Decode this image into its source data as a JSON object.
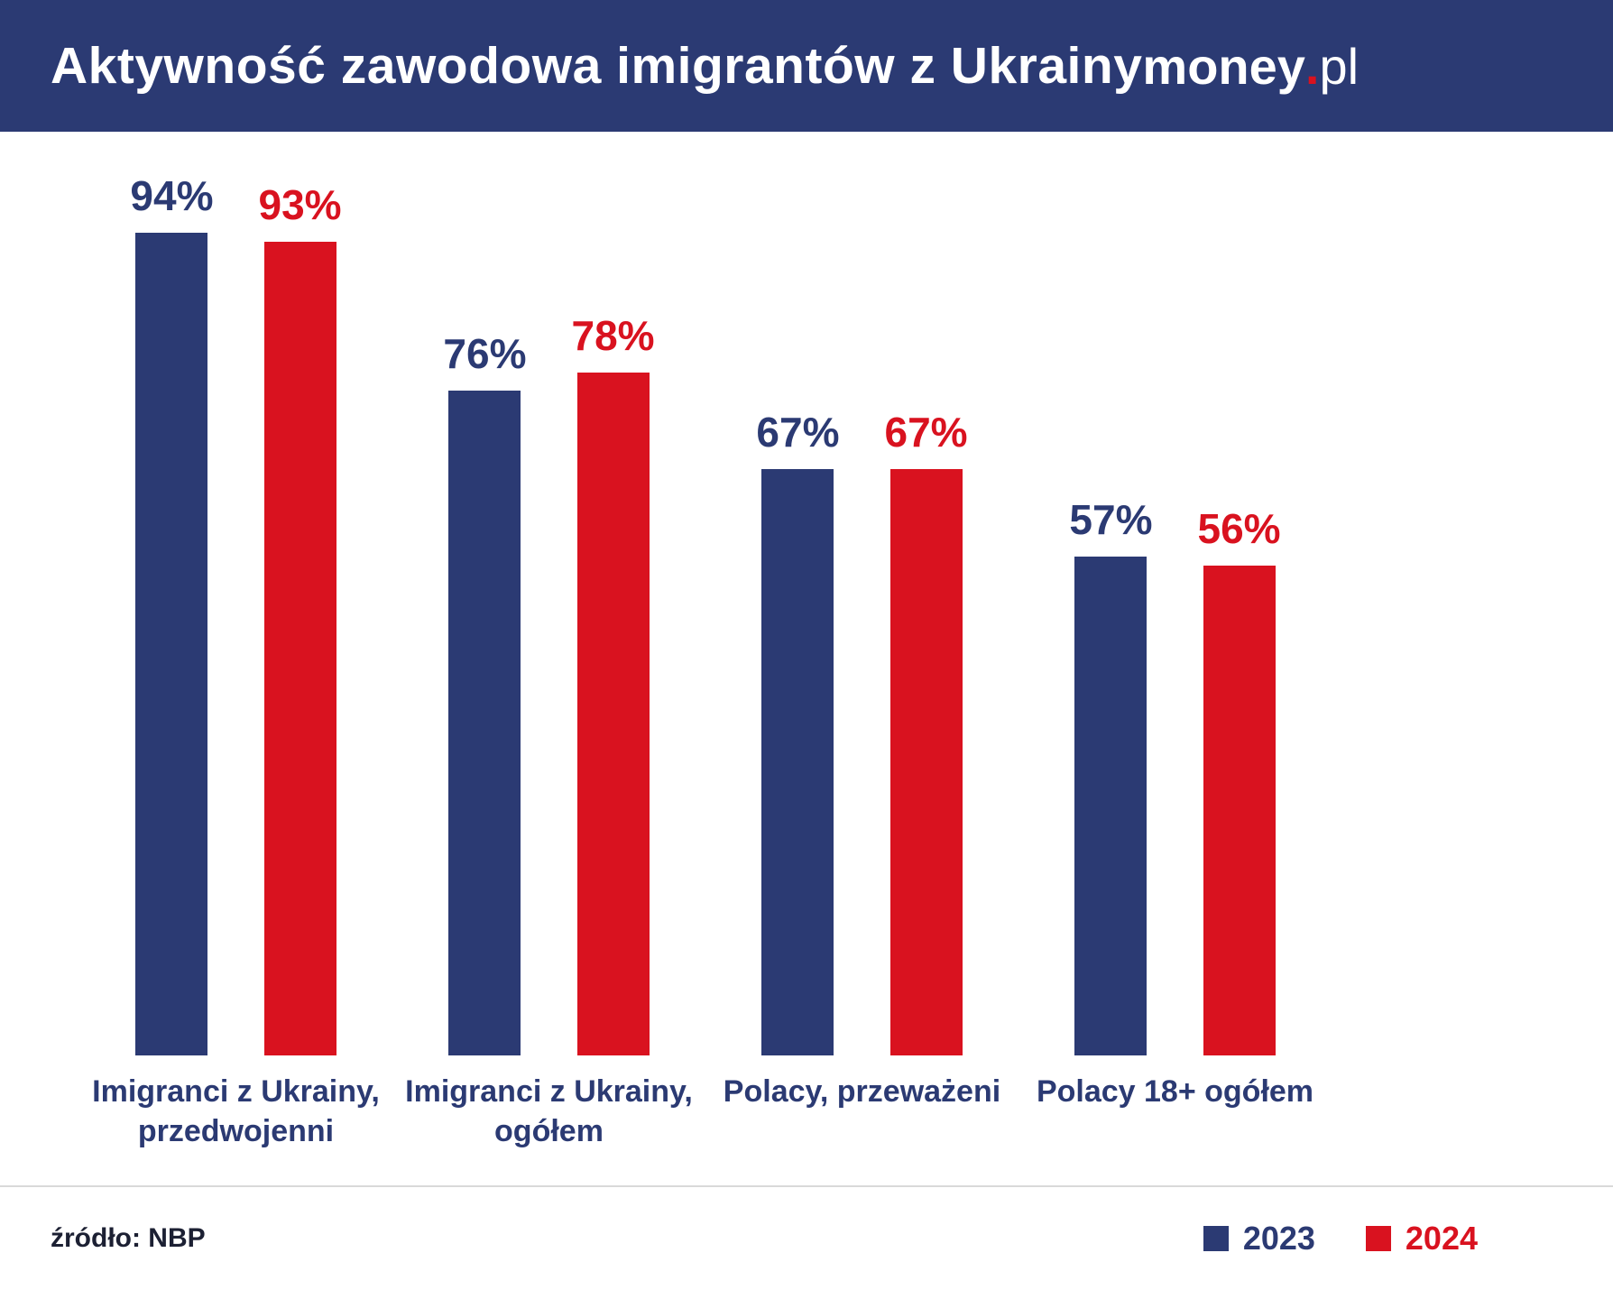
{
  "colors": {
    "navy": "#2b3a73",
    "red": "#d9121f",
    "divider": "#d9d9d9",
    "header_bg": "#2b3a73",
    "title_text": "#ffffff"
  },
  "header": {
    "title": "Aktywność zawodowa imigrantów z Ukrainy",
    "logo": {
      "money": "money",
      "dot": ".",
      "pl": "pl"
    }
  },
  "chart_data": {
    "type": "bar",
    "title": "Aktywność zawodowa imigrantów z Ukrainy",
    "unit": "%",
    "ylim": [
      0,
      100
    ],
    "grid": false,
    "legend_position": "bottom-right",
    "categories": [
      "Imigranci z Ukrainy, przedwojenni",
      "Imigranci z Ukrainy, ogółem",
      "Polacy, przeważeni",
      "Polacy 18+ ogółem"
    ],
    "category_lines": [
      [
        "Imigranci z Ukrainy,",
        "przedwojenni"
      ],
      [
        "Imigranci z Ukrainy,",
        "ogółem"
      ],
      [
        "Polacy, przeważeni"
      ],
      [
        "Polacy 18+ ogółem"
      ]
    ],
    "series": [
      {
        "name": "2023",
        "color": "#2b3a73",
        "values": [
          94,
          76,
          67,
          57
        ]
      },
      {
        "name": "2024",
        "color": "#d9121f",
        "values": [
          93,
          78,
          67,
          56
        ]
      }
    ],
    "value_labels": [
      [
        "94%",
        "93%"
      ],
      [
        "76%",
        "78%"
      ],
      [
        "67%",
        "67%"
      ],
      [
        "57%",
        "56%"
      ]
    ]
  },
  "footer": {
    "source": "źródło: NBP"
  }
}
